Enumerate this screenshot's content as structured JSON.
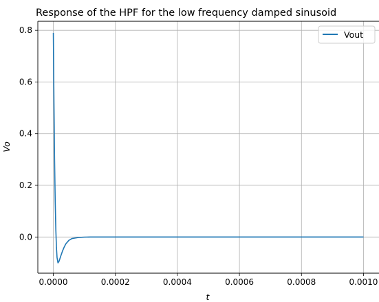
{
  "chart_data": {
    "type": "line",
    "title": "Response of the HPF for the low frequency damped sinusoid",
    "xlabel": "t",
    "ylabel": "Vo",
    "xlim": [
      -5e-05,
      0.00105
    ],
    "ylim": [
      -0.14,
      0.835
    ],
    "grid": true,
    "legend_position": "top-right",
    "x_ticks": [
      0.0,
      0.0002,
      0.0004,
      0.0006,
      0.0008,
      0.001
    ],
    "x_tick_labels": [
      "0.0000",
      "0.0002",
      "0.0004",
      "0.0006",
      "0.0008",
      "0.0010"
    ],
    "y_ticks": [
      0.0,
      0.2,
      0.4,
      0.6,
      0.8
    ],
    "y_tick_labels": [
      "0.0",
      "0.2",
      "0.4",
      "0.6",
      "0.8"
    ],
    "series": [
      {
        "name": "Vout",
        "color": "#1f77b4",
        "x": [
          0.0,
          2e-06,
          4e-06,
          6e-06,
          8e-06,
          1e-05,
          1.2e-05,
          1.5e-05,
          1.8e-05,
          2e-05,
          2.5e-05,
          3e-05,
          3.5e-05,
          4e-05,
          5e-05,
          6e-05,
          8e-05,
          0.0001,
          0.00012,
          0.00015,
          0.0002,
          0.0003,
          0.0005,
          0.0007,
          0.001
        ],
        "values": [
          0.79,
          0.52,
          0.3,
          0.14,
          0.03,
          -0.04,
          -0.08,
          -0.1,
          -0.095,
          -0.088,
          -0.07,
          -0.053,
          -0.039,
          -0.027,
          -0.013,
          -0.006,
          -0.002,
          -0.0005,
          0.0,
          0.0,
          0.0,
          0.0,
          0.0,
          0.0,
          0.0
        ]
      }
    ]
  }
}
